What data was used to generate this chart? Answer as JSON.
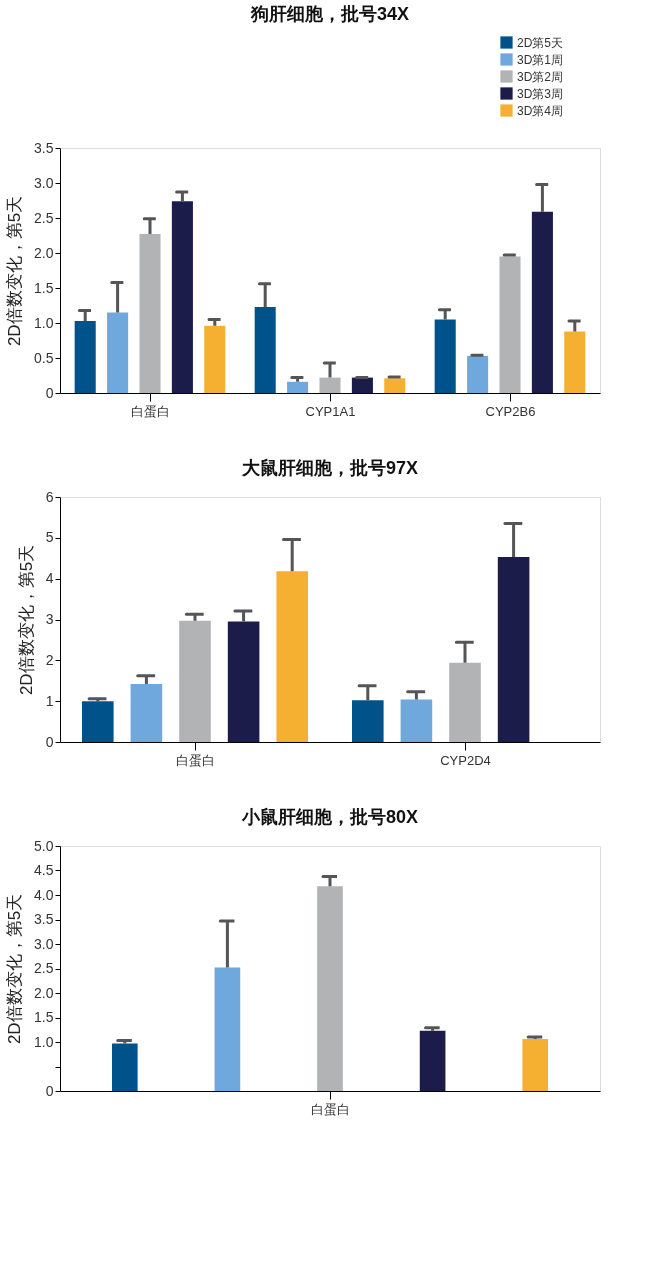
{
  "chart_data": [
    {
      "type": "bar",
      "title": "狗肝细胞，批号34X",
      "ylabel": "2D倍数变化，第5天",
      "categories": [
        "白蛋白",
        "CYP1A1",
        "CYP2B6"
      ],
      "ylim": [
        0,
        3.5
      ],
      "yticks": [
        0,
        0.5,
        {
          "value": 1.0,
          "label": "1.0"
        },
        1.5,
        {
          "value": 2.0,
          "label": "2.0"
        },
        2.5,
        {
          "value": 3.0,
          "label": "3.0"
        },
        3.5
      ],
      "legend": "top right",
      "grid": false,
      "series": [
        {
          "name": "2D第5天",
          "color": "#00538a",
          "values": [
            1.03,
            1.23,
            1.05
          ],
          "errors": [
            [
              1.03,
              1.18
            ],
            [
              1.23,
              1.56
            ],
            [
              1.05,
              1.19
            ]
          ]
        },
        {
          "name": "3D第1周",
          "color": "#6fa8dc",
          "values": [
            1.15,
            0.16,
            0.53
          ],
          "errors": [
            [
              1.15,
              1.58
            ],
            [
              0.16,
              0.22
            ],
            [
              0.53,
              0.54
            ]
          ]
        },
        {
          "name": "3D第2周",
          "color": "#b2b3b5",
          "values": [
            2.27,
            0.22,
            1.95
          ],
          "errors": [
            [
              2.27,
              2.49
            ],
            [
              0.22,
              0.43
            ],
            [
              1.95,
              1.97
            ]
          ]
        },
        {
          "name": "3D第3周",
          "color": "#1c1c4b",
          "values": [
            2.74,
            0.22,
            2.59
          ],
          "errors": [
            [
              2.74,
              2.87
            ],
            [
              0.22,
              0.22
            ],
            [
              2.59,
              2.98
            ]
          ]
        },
        {
          "name": "3D第4周",
          "color": "#f5b031",
          "values": [
            0.96,
            0.21,
            0.88
          ],
          "errors": [
            [
              0.96,
              1.05
            ],
            [
              0.21,
              0.23
            ],
            [
              0.88,
              1.03
            ]
          ]
        }
      ]
    },
    {
      "type": "bar",
      "title": "大鼠肝细胞，批号97X",
      "ylabel": "2D倍数变化，第5天",
      "categories": [
        "白蛋白",
        "CYP2D4"
      ],
      "ylim": [
        0,
        6
      ],
      "yticks": [
        0,
        1,
        2,
        3,
        4,
        5,
        6
      ],
      "legend": false,
      "grid": false,
      "series": [
        {
          "color": "#00538a",
          "values": [
            1.0,
            1.02
          ],
          "errors": [
            [
              1.0,
              1.06
            ],
            [
              1.02,
              1.38
            ]
          ]
        },
        {
          "color": "#6fa8dc",
          "values": [
            1.42,
            1.04
          ],
          "errors": [
            [
              1.42,
              1.62
            ],
            [
              1.04,
              1.23
            ]
          ]
        },
        {
          "color": "#b2b3b5",
          "values": [
            2.97,
            1.94
          ],
          "errors": [
            [
              2.97,
              3.13
            ],
            [
              1.94,
              2.44
            ]
          ]
        },
        {
          "color": "#1c1c4b",
          "values": [
            2.95,
            4.53
          ],
          "errors": [
            [
              2.95,
              3.21
            ],
            [
              4.53,
              5.35
            ]
          ]
        },
        {
          "color": "#f5b031",
          "values": [
            4.18,
            null
          ],
          "errors": [
            [
              4.18,
              4.96
            ],
            null
          ]
        }
      ]
    },
    {
      "type": "bar",
      "title": "小鼠肝细胞，批号80X",
      "ylabel": "2D倍数变化，第5天",
      "categories": [
        "白蛋白"
      ],
      "ylim": [
        0,
        5
      ],
      "yticks": [
        0,
        {
          "value": 0.5,
          "label": null
        },
        {
          "value": 1.0,
          "label": "1.0"
        },
        1.5,
        {
          "value": 2.0,
          "label": "2.0"
        },
        2.5,
        {
          "value": 3.0,
          "label": "3.0"
        },
        3.5,
        {
          "value": 4.0,
          "label": "4.0"
        },
        4.5,
        {
          "value": 5.0,
          "label": "5.0"
        }
      ],
      "legend": false,
      "grid": false,
      "series": [
        {
          "color": "#00538a",
          "values": [
            0.97
          ],
          "errors": [
            [
              0.97,
              1.03
            ]
          ]
        },
        {
          "color": "#6fa8dc",
          "values": [
            2.52
          ],
          "errors": [
            [
              2.52,
              3.47
            ]
          ]
        },
        {
          "color": "#b2b3b5",
          "values": [
            4.18
          ],
          "errors": [
            [
              4.18,
              4.38
            ]
          ]
        },
        {
          "color": "#1c1c4b",
          "values": [
            1.23
          ],
          "errors": [
            [
              1.23,
              1.29
            ]
          ]
        },
        {
          "color": "#f5b031",
          "values": [
            1.06
          ],
          "errors": [
            [
              1.06,
              1.1
            ]
          ]
        }
      ]
    }
  ]
}
